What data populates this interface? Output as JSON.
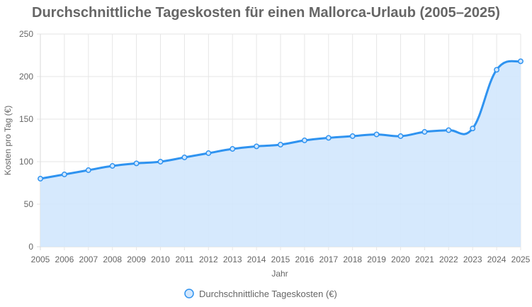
{
  "chart_data": {
    "type": "area",
    "title": "Durchschnittliche Tageskosten für einen Mallorca-Urlaub (2005–2025)",
    "xlabel": "Jahr",
    "ylabel": "Kosten pro Tag (€)",
    "categories": [
      "2005",
      "2006",
      "2007",
      "2008",
      "2009",
      "2010",
      "2011",
      "2012",
      "2013",
      "2014",
      "2015",
      "2016",
      "2017",
      "2018",
      "2019",
      "2020",
      "2021",
      "2022",
      "2023",
      "2024",
      "2025"
    ],
    "y_ticks": [
      "0",
      "50",
      "100",
      "150",
      "200",
      "250"
    ],
    "ylim": [
      0,
      250
    ],
    "series": [
      {
        "name": "Durchschnittliche Tageskosten (€)",
        "values": [
          80,
          85,
          90,
          95,
          98,
          100,
          105,
          110,
          115,
          118,
          120,
          125,
          128,
          130,
          132,
          130,
          135,
          137,
          139,
          208,
          218
        ]
      }
    ],
    "grid": true,
    "legend": "bottom",
    "colors": {
      "line": "#2f93f0",
      "fill": "#d2e7fd",
      "grid": "#e6e6e6",
      "axis": "#d9d9d9"
    }
  }
}
